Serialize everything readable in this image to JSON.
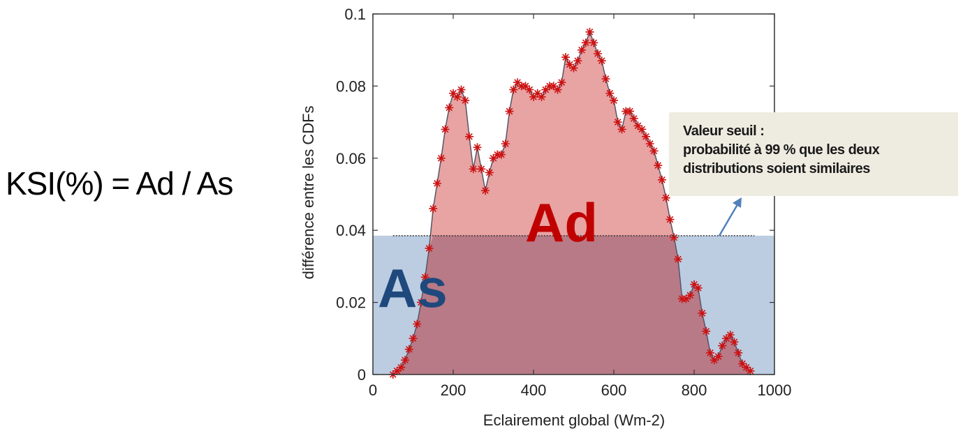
{
  "formula": "KSI(%) = Ad / As",
  "annotation": {
    "lines": [
      "Valeur seuil :",
      "probabilité à 99 % que les deux",
      "distributions soient similaires"
    ]
  },
  "colors": {
    "ad_fill": "#e8a3a3",
    "as_fill": "#bccde2",
    "overlap_fill": "#b87a86",
    "curve": "#cc1111",
    "threshold": "#333333",
    "arrow": "#4f81bd",
    "ad_label": "#c00000",
    "as_label": "#1f497d",
    "annotation_bg": "#eeece1"
  },
  "chart_data": {
    "type": "area",
    "title": "",
    "xlabel": "Eclairement global (Wm-2)",
    "ylabel": "différence entre les CDFs",
    "xlim": [
      0,
      1000
    ],
    "ylim": [
      0,
      0.1
    ],
    "xticks": [
      0,
      200,
      400,
      600,
      800,
      1000
    ],
    "yticks": [
      0,
      0.02,
      0.04,
      0.06,
      0.08,
      0.1
    ],
    "xtick_labels": [
      "0",
      "200",
      "400",
      "600",
      "800",
      "1000"
    ],
    "ytick_labels": [
      "0",
      "0.02",
      "0.04",
      "0.06",
      "0.08",
      "0.1"
    ],
    "threshold": 0.0385,
    "threshold_xrange": [
      50,
      950
    ],
    "as_region": {
      "label": "As",
      "x": [
        0,
        1000
      ],
      "y": [
        0,
        0.0385
      ]
    },
    "ad_region": {
      "label": "Ad"
    },
    "series": [
      {
        "x": [
          50,
          60,
          70,
          80,
          90,
          100,
          110,
          120,
          130,
          140,
          150,
          160,
          170,
          180,
          190,
          200,
          210,
          220,
          230,
          240,
          250,
          260,
          270,
          280,
          290,
          300,
          310,
          320,
          330,
          340,
          350,
          360,
          370,
          380,
          390,
          400,
          410,
          420,
          430,
          440,
          450,
          460,
          470,
          480,
          490,
          500,
          510,
          520,
          530,
          540,
          550,
          560,
          570,
          580,
          590,
          600,
          610,
          620,
          630,
          640,
          650,
          660,
          670,
          680,
          690,
          700,
          710,
          720,
          730,
          740,
          750,
          760,
          770,
          780,
          790,
          800,
          810,
          820,
          830,
          840,
          850,
          860,
          870,
          880,
          890,
          900,
          910,
          920,
          930,
          940
        ],
        "y": [
          0.0,
          0.001,
          0.002,
          0.004,
          0.007,
          0.01,
          0.014,
          0.02,
          0.027,
          0.035,
          0.046,
          0.053,
          0.06,
          0.068,
          0.074,
          0.078,
          0.077,
          0.079,
          0.076,
          0.066,
          0.057,
          0.063,
          0.057,
          0.051,
          0.056,
          0.06,
          0.061,
          0.061,
          0.064,
          0.073,
          0.079,
          0.081,
          0.08,
          0.08,
          0.079,
          0.077,
          0.078,
          0.077,
          0.079,
          0.08,
          0.08,
          0.079,
          0.081,
          0.088,
          0.086,
          0.085,
          0.087,
          0.09,
          0.092,
          0.095,
          0.092,
          0.089,
          0.087,
          0.082,
          0.078,
          0.076,
          0.07,
          0.068,
          0.073,
          0.073,
          0.071,
          0.069,
          0.068,
          0.066,
          0.064,
          0.062,
          0.058,
          0.054,
          0.049,
          0.043,
          0.038,
          0.032,
          0.021,
          0.021,
          0.022,
          0.025,
          0.024,
          0.017,
          0.012,
          0.006,
          0.004,
          0.005,
          0.008,
          0.01,
          0.011,
          0.009,
          0.006,
          0.003,
          0.002,
          0.001
        ]
      }
    ]
  }
}
